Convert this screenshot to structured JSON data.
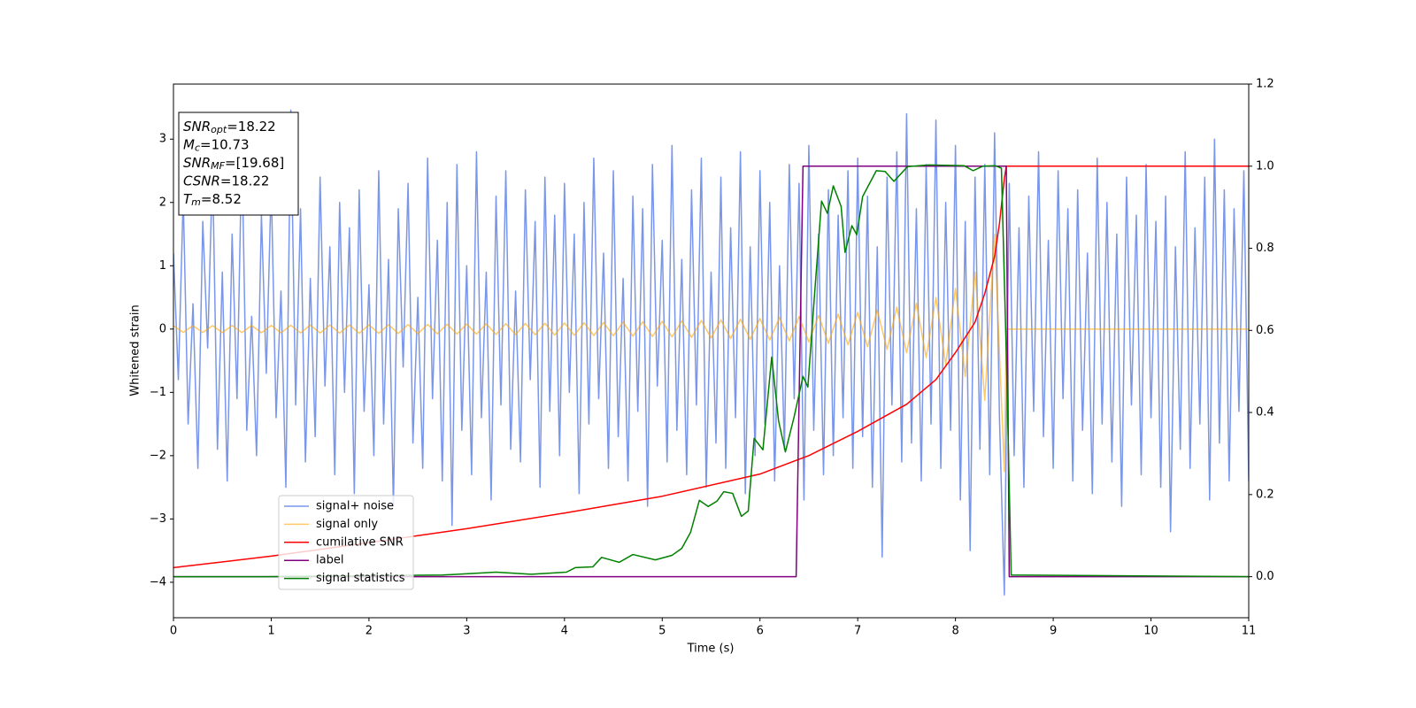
{
  "chart_data": {
    "type": "line",
    "xlabel": "Time (s)",
    "ylabel": "Whitened strain",
    "xlim": [
      0,
      11
    ],
    "xticks": [
      0,
      1,
      2,
      3,
      4,
      5,
      6,
      7,
      8,
      9,
      10,
      11
    ],
    "ylim": [
      -4.56,
      3.87
    ],
    "yticks": [
      {
        "value": -4,
        "label": "−4"
      },
      {
        "value": -3,
        "label": "−3"
      },
      {
        "value": -2,
        "label": "−2"
      },
      {
        "value": -1,
        "label": "−1"
      },
      {
        "value": 0,
        "label": "0"
      },
      {
        "value": 1,
        "label": "1"
      },
      {
        "value": 2,
        "label": "2"
      },
      {
        "value": 3,
        "label": "3"
      }
    ],
    "y2lim": [
      -0.1,
      1.2
    ],
    "y2ticks": [
      {
        "value": 0,
        "label": "0.0"
      },
      0.2,
      0.4,
      0.6,
      0.8,
      {
        "value": 1,
        "label": "1.0"
      },
      1.2
    ],
    "grid": false,
    "legend_loc": "lower left",
    "annotation_lines": [
      {
        "name": "SNR",
        "subscript": "opt",
        "text": "=18.22"
      },
      {
        "name": "M",
        "subscript": "c",
        "text": "=10.73"
      },
      {
        "name": "SNR",
        "subscript": "MF",
        "text": "=[19.68]"
      },
      {
        "name": "CSNR",
        "text": "=18.22"
      },
      {
        "name": "T",
        "subscript": "m",
        "text": "=8.52"
      }
    ],
    "series": [
      {
        "name": "signal+ noise",
        "color": "#4169e1",
        "opacity": 0.7,
        "x": [
          0,
          0.05,
          0.1,
          0.15,
          0.2,
          0.25,
          0.3,
          0.35,
          0.4,
          0.45,
          0.5,
          0.55,
          0.6,
          0.65,
          0.7,
          0.75,
          0.8,
          0.85,
          0.9,
          0.95,
          1,
          1.05,
          1.1,
          1.15,
          1.2,
          1.25,
          1.3,
          1.35,
          1.4,
          1.45,
          1.5,
          1.55,
          1.6,
          1.65,
          1.7,
          1.75,
          1.8,
          1.85,
          1.9,
          1.95,
          2,
          2.05,
          2.1,
          2.15,
          2.2,
          2.25,
          2.3,
          2.35,
          2.4,
          2.45,
          2.5,
          2.55,
          2.6,
          2.65,
          2.7,
          2.75,
          2.8,
          2.85,
          2.9,
          2.95,
          3,
          3.05,
          3.1,
          3.15,
          3.2,
          3.25,
          3.3,
          3.35,
          3.4,
          3.45,
          3.5,
          3.55,
          3.6,
          3.65,
          3.7,
          3.75,
          3.8,
          3.85,
          3.9,
          3.95,
          4,
          4.05,
          4.1,
          4.15,
          4.2,
          4.25,
          4.3,
          4.35,
          4.4,
          4.45,
          4.5,
          4.55,
          4.6,
          4.65,
          4.7,
          4.75,
          4.8,
          4.85,
          4.9,
          4.95,
          5,
          5.05,
          5.1,
          5.15,
          5.2,
          5.25,
          5.3,
          5.35,
          5.4,
          5.45,
          5.5,
          5.55,
          5.6,
          5.65,
          5.7,
          5.75,
          5.8,
          5.85,
          5.9,
          5.95,
          6,
          6.05,
          6.1,
          6.15,
          6.2,
          6.25,
          6.3,
          6.35,
          6.4,
          6.45,
          6.5,
          6.55,
          6.6,
          6.65,
          6.7,
          6.75,
          6.8,
          6.85,
          6.9,
          6.95,
          7,
          7.05,
          7.1,
          7.15,
          7.2,
          7.25,
          7.3,
          7.35,
          7.4,
          7.45,
          7.5,
          7.55,
          7.6,
          7.65,
          7.7,
          7.75,
          7.8,
          7.85,
          7.9,
          7.95,
          8,
          8.05,
          8.1,
          8.15,
          8.2,
          8.25,
          8.3,
          8.35,
          8.4,
          8.45,
          8.5,
          8.55,
          8.6,
          8.65,
          8.7,
          8.75,
          8.8,
          8.85,
          8.9,
          8.95,
          9,
          9.05,
          9.1,
          9.15,
          9.2,
          9.25,
          9.3,
          9.35,
          9.4,
          9.45,
          9.5,
          9.55,
          9.6,
          9.65,
          9.7,
          9.75,
          9.8,
          9.85,
          9.9,
          9.95,
          10,
          10.05,
          10.1,
          10.15,
          10.2,
          10.25,
          10.3,
          10.35,
          10.4,
          10.45,
          10.5,
          10.55,
          10.6,
          10.65,
          10.7,
          10.75,
          10.8,
          10.85,
          10.9,
          10.95,
          11
        ],
        "values": [
          1.2,
          -0.8,
          2.1,
          -1.5,
          0.4,
          -2.2,
          1.7,
          -0.3,
          2.6,
          -1.9,
          0.9,
          -2.4,
          1.5,
          -1.1,
          2.9,
          -1.6,
          0.2,
          -2.0,
          1.8,
          -0.7,
          2.3,
          -1.4,
          0.6,
          -2.5,
          3.46,
          -1.2,
          1.9,
          -2.1,
          0.8,
          -1.7,
          2.4,
          -0.9,
          1.3,
          -2.3,
          2.0,
          -1.0,
          1.6,
          -2.6,
          2.2,
          -1.3,
          0.7,
          -2.0,
          2.5,
          -1.5,
          1.1,
          -2.8,
          1.9,
          -0.6,
          2.3,
          -1.8,
          0.5,
          -2.2,
          2.7,
          -1.1,
          1.4,
          -2.4,
          2.0,
          -3.1,
          2.6,
          -1.6,
          1.0,
          -2.3,
          2.8,
          -1.4,
          0.9,
          -2.7,
          2.1,
          -1.2,
          2.5,
          -1.9,
          0.6,
          -2.1,
          2.2,
          -0.8,
          1.7,
          -2.5,
          2.4,
          -1.3,
          1.8,
          -2.0,
          2.3,
          -1.0,
          1.5,
          -2.6,
          2.0,
          -1.5,
          2.7,
          -1.1,
          1.2,
          -2.2,
          2.5,
          -1.7,
          0.8,
          -2.4,
          2.1,
          -1.3,
          1.9,
          -2.8,
          2.6,
          -0.9,
          1.4,
          -2.1,
          2.9,
          -1.6,
          1.1,
          -2.3,
          2.2,
          -1.2,
          2.7,
          -2.5,
          0.9,
          -1.8,
          2.4,
          -2.2,
          1.6,
          -1.4,
          2.8,
          -2.6,
          1.3,
          -2.0,
          2.5,
          -1.5,
          2.0,
          -2.4,
          1.0,
          -1.9,
          2.6,
          -1.1,
          2.3,
          -2.7,
          2.9,
          -1.6,
          1.5,
          -2.3,
          2.2,
          -2.0,
          1.8,
          -1.4,
          2.5,
          -2.2,
          2.7,
          -1.7,
          2.1,
          -2.5,
          1.3,
          -3.6,
          2.4,
          -1.2,
          2.8,
          -2.1,
          3.4,
          -1.8,
          1.9,
          -2.4,
          2.6,
          -1.5,
          3.3,
          -2.2,
          2.0,
          -1.6,
          2.9,
          -2.7,
          1.7,
          -3.5,
          2.4,
          -1.9,
          2.6,
          -2.3,
          3.1,
          -1.4,
          -4.2,
          2.3,
          -2.0,
          1.6,
          -2.5,
          2.1,
          -1.3,
          2.8,
          -1.7,
          1.4,
          -2.2,
          2.5,
          -1.1,
          1.9,
          -2.4,
          2.2,
          -1.6,
          1.2,
          -2.6,
          2.7,
          -1.5,
          2.0,
          -2.1,
          1.5,
          -2.8,
          2.4,
          -1.2,
          1.8,
          -2.3,
          2.6,
          -1.4,
          1.7,
          -2.5,
          2.1,
          -3.2,
          1.3,
          -1.9,
          2.8,
          -2.2,
          1.6,
          -1.5,
          2.4,
          -2.7,
          3.0,
          -1.8,
          2.2,
          -2.4,
          1.9,
          -1.3,
          2.5,
          -2.4
        ]
      },
      {
        "name": "signal only",
        "color": "orange",
        "opacity": 0.6,
        "x": [
          0,
          0.1,
          0.2,
          0.3,
          0.4,
          0.5,
          0.6,
          0.7,
          0.8,
          0.9,
          1,
          1.1,
          1.2,
          1.3,
          1.4,
          1.5,
          1.6,
          1.7,
          1.8,
          1.9,
          2,
          2.1,
          2.2,
          2.3,
          2.4,
          2.5,
          2.6,
          2.7,
          2.8,
          2.9,
          3,
          3.1,
          3.2,
          3.3,
          3.4,
          3.5,
          3.6,
          3.7,
          3.8,
          3.9,
          4,
          4.1,
          4.2,
          4.3,
          4.4,
          4.5,
          4.6,
          4.7,
          4.8,
          4.9,
          5,
          5.1,
          5.2,
          5.3,
          5.4,
          5.5,
          5.6,
          5.7,
          5.8,
          5.9,
          6,
          6.1,
          6.2,
          6.3,
          6.4,
          6.5,
          6.6,
          6.7,
          6.8,
          6.9,
          7,
          7.1,
          7.2,
          7.3,
          7.4,
          7.5,
          7.6,
          7.7,
          7.8,
          7.9,
          8,
          8.1,
          8.2,
          8.3,
          8.4,
          8.5,
          8.52,
          11
        ],
        "values": [
          0.052,
          -0.052,
          0.053,
          -0.054,
          0.054,
          -0.055,
          0.056,
          -0.056,
          0.057,
          -0.058,
          0.058,
          -0.059,
          0.06,
          -0.061,
          0.062,
          -0.063,
          0.063,
          -0.064,
          0.065,
          -0.066,
          0.067,
          -0.068,
          0.069,
          -0.07,
          0.071,
          -0.073,
          0.074,
          -0.075,
          0.076,
          -0.078,
          0.079,
          -0.08,
          0.082,
          -0.084,
          0.085,
          -0.087,
          0.088,
          -0.09,
          0.092,
          -0.094,
          0.096,
          -0.098,
          0.1,
          -0.102,
          0.105,
          -0.107,
          0.11,
          -0.113,
          0.115,
          -0.118,
          0.122,
          -0.125,
          0.129,
          -0.132,
          0.136,
          -0.141,
          0.145,
          -0.15,
          0.155,
          -0.161,
          0.167,
          -0.173,
          0.18,
          -0.188,
          0.196,
          -0.205,
          0.214,
          -0.225,
          0.237,
          -0.25,
          0.265,
          -0.281,
          0.3,
          -0.321,
          0.346,
          -0.375,
          0.409,
          -0.45,
          0.5,
          -0.563,
          0.643,
          -0.75,
          0.9,
          -1.125,
          1.5,
          -2.25,
          0,
          0
        ]
      },
      {
        "name": "cumilative SNR",
        "color": "red",
        "axis": "y2",
        "x": [
          0,
          1,
          2,
          3,
          4,
          5,
          6,
          6.5,
          7,
          7.5,
          7.8,
          8,
          8.2,
          8.3,
          8.4,
          8.45,
          8.5,
          8.52,
          11
        ],
        "values": [
          0.022,
          0.05,
          0.083,
          0.117,
          0.155,
          0.196,
          0.25,
          0.295,
          0.354,
          0.42,
          0.48,
          0.546,
          0.62,
          0.69,
          0.78,
          0.86,
          0.97,
          1,
          1
        ]
      },
      {
        "name": "label",
        "color": "purple",
        "axis": "y2",
        "x": [
          0,
          6.37,
          6.44,
          8.52,
          8.55,
          11
        ],
        "values": [
          0,
          0,
          1,
          1,
          0,
          0
        ]
      },
      {
        "name": "signal statistics",
        "color": "green",
        "axis": "y2",
        "x": [
          0,
          0.94,
          2.75,
          3.3,
          3.66,
          4.02,
          4.11,
          4.29,
          4.38,
          4.56,
          4.7,
          4.93,
          5.1,
          5.2,
          5.29,
          5.38,
          5.47,
          5.56,
          5.63,
          5.72,
          5.81,
          5.88,
          5.94,
          6.03,
          6.12,
          6.19,
          6.26,
          6.35,
          6.44,
          6.49,
          6.56,
          6.63,
          6.69,
          6.75,
          6.83,
          6.87,
          6.94,
          6.99,
          7.05,
          7.19,
          7.28,
          7.37,
          7.51,
          7.73,
          8.09,
          8.18,
          8.28,
          8.41,
          8.47,
          8.52,
          8.57,
          11
        ],
        "values": [
          0,
          0,
          0.004,
          0.011,
          0.006,
          0.011,
          0.022,
          0.024,
          0.047,
          0.035,
          0.054,
          0.041,
          0.052,
          0.069,
          0.108,
          0.186,
          0.171,
          0.184,
          0.207,
          0.203,
          0.147,
          0.16,
          0.337,
          0.309,
          0.535,
          0.38,
          0.304,
          0.39,
          0.488,
          0.462,
          0.693,
          0.915,
          0.885,
          0.952,
          0.902,
          0.79,
          0.855,
          0.833,
          0.926,
          0.989,
          0.987,
          0.963,
          0.999,
          1.003,
          1.001,
          0.989,
          1,
          1.001,
          0.995,
          0.542,
          0.004,
          0
        ]
      }
    ]
  }
}
